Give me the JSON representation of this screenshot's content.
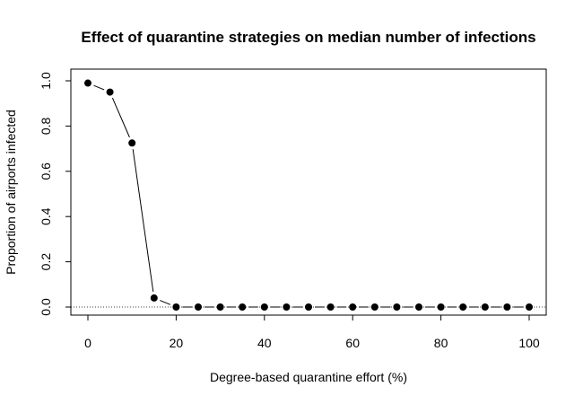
{
  "chart_data": {
    "type": "line",
    "title": "Effect of quarantine strategies on median number of infections",
    "xlabel": "Degree-based quarantine effort (%)",
    "ylabel": "Proportion of airports infected",
    "xlim": [
      0,
      100
    ],
    "ylim": [
      0,
      1
    ],
    "xticks": [
      0,
      20,
      40,
      60,
      80,
      100
    ],
    "yticks": [
      0.0,
      0.2,
      0.4,
      0.6,
      0.8,
      1.0
    ],
    "xtick_labels": [
      "0",
      "20",
      "40",
      "60",
      "80",
      "100"
    ],
    "ytick_labels": [
      "0.0",
      "0.2",
      "0.4",
      "0.6",
      "0.8",
      "1.0"
    ],
    "reference_line": {
      "y": 0,
      "style": "dotted"
    },
    "grid": false,
    "x": [
      0,
      5,
      10,
      15,
      20,
      25,
      30,
      35,
      40,
      45,
      50,
      55,
      60,
      65,
      70,
      75,
      80,
      85,
      90,
      95,
      100
    ],
    "y": [
      0.99,
      0.95,
      0.725,
      0.04,
      0.0,
      0.0,
      0.0,
      0.0,
      0.0,
      0.0,
      0.0,
      0.0,
      0.0,
      0.0,
      0.0,
      0.0,
      0.0,
      0.0,
      0.0,
      0.0,
      0.0
    ]
  }
}
